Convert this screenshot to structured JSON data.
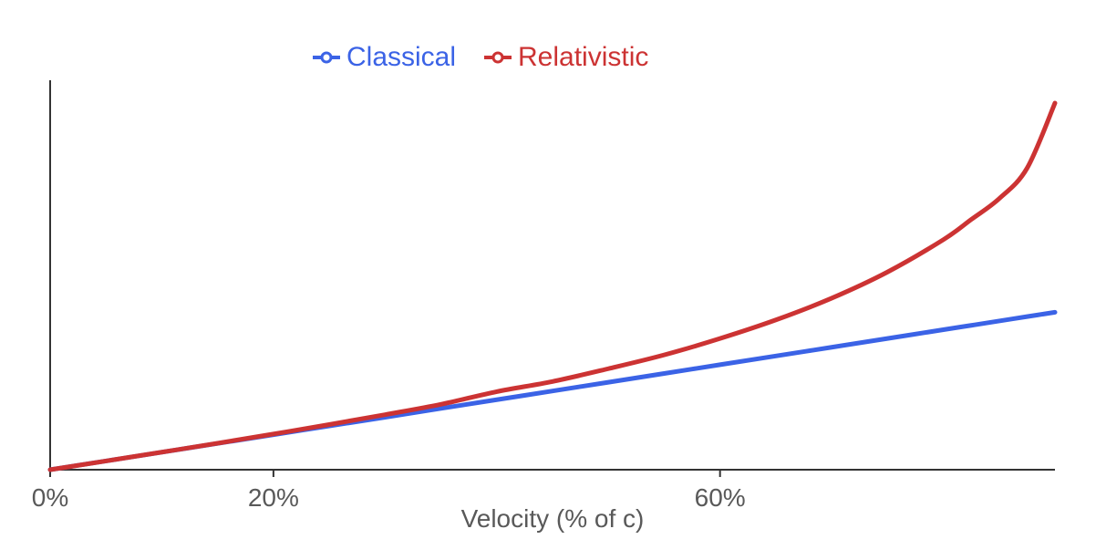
{
  "chart_data": {
    "type": "line",
    "title": "",
    "xlabel": "Velocity (% of c)",
    "ylabel": "",
    "xlim": [
      0,
      0.9
    ],
    "ylim": [
      0,
      1
    ],
    "xticks": [
      {
        "value": 0,
        "label": "0%"
      },
      {
        "value": 0.2,
        "label": "20%"
      },
      {
        "value": 0.6,
        "label": "60%"
      }
    ],
    "grid": false,
    "legend": {
      "placement": "top-center"
    },
    "x": [
      0,
      0.05,
      0.1,
      0.15,
      0.2,
      0.25,
      0.3,
      0.35,
      0.4,
      0.45,
      0.5,
      0.55,
      0.6,
      0.65,
      0.7,
      0.75,
      0.8,
      0.825,
      0.85,
      0.875,
      0.9
    ],
    "series": [
      {
        "name": "Classical",
        "color": "#3b63e6",
        "values": [
          0,
          0.0222,
          0.0444,
          0.0667,
          0.0889,
          0.1111,
          0.1333,
          0.1556,
          0.1778,
          0.2,
          0.2222,
          0.2444,
          0.2667,
          0.2889,
          0.3111,
          0.3333,
          0.3556,
          0.3667,
          0.3778,
          0.3889,
          0.4
        ]
      },
      {
        "name": "Relativistic",
        "color": "#cc3333",
        "values": [
          0,
          0.0222,
          0.0446,
          0.0672,
          0.0907,
          0.1147,
          0.1398,
          0.1661,
          0.1983,
          0.2241,
          0.2566,
          0.2916,
          0.3333,
          0.3805,
          0.4357,
          0.5022,
          0.5843,
          0.6357,
          0.6886,
          0.7659,
          0.9314
        ]
      }
    ]
  }
}
